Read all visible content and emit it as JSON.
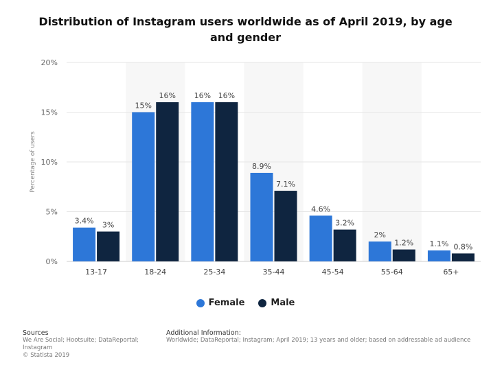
{
  "title": "Distribution of Instagram users worldwide as of April 2019, by age and gender",
  "colors": {
    "female": "#2d77d8",
    "male": "#0f2540",
    "band": "#f7f7f7",
    "grid": "#e6e6e6"
  },
  "chart_data": {
    "type": "bar",
    "title": "Distribution of Instagram users worldwide as of April 2019, by age and gender",
    "categories": [
      "13-17",
      "18-24",
      "25-34",
      "35-44",
      "45-54",
      "55-64",
      "65+"
    ],
    "series": [
      {
        "name": "Female",
        "values": [
          3.4,
          15,
          16,
          8.9,
          4.6,
          2,
          1.1
        ],
        "labels": [
          "3.4%",
          "15%",
          "16%",
          "8.9%",
          "4.6%",
          "2%",
          "1.1%"
        ]
      },
      {
        "name": "Male",
        "values": [
          3,
          16,
          16,
          7.1,
          3.2,
          1.2,
          0.8
        ],
        "labels": [
          "3%",
          "16%",
          "16%",
          "7.1%",
          "3.2%",
          "1.2%",
          "0.8%"
        ]
      }
    ],
    "xlabel": "",
    "ylabel": "Percentage of users",
    "ylim": [
      0,
      20
    ],
    "yticks": [
      "0%",
      "5%",
      "10%",
      "15%",
      "20%"
    ],
    "legend_position": "bottom",
    "grid": true
  },
  "legend": {
    "female": "Female",
    "male": "Male"
  },
  "footer": {
    "sources_heading": "Sources",
    "sources_line1": "We Are Social; Hootsuite; DataReportal;",
    "sources_line2": "Instagram",
    "copyright": "© Statista 2019",
    "additional_heading": "Additional Information:",
    "additional_text": "Worldwide; DataReportal; Instagram; April 2019; 13 years and older; based on addressable ad audience"
  }
}
